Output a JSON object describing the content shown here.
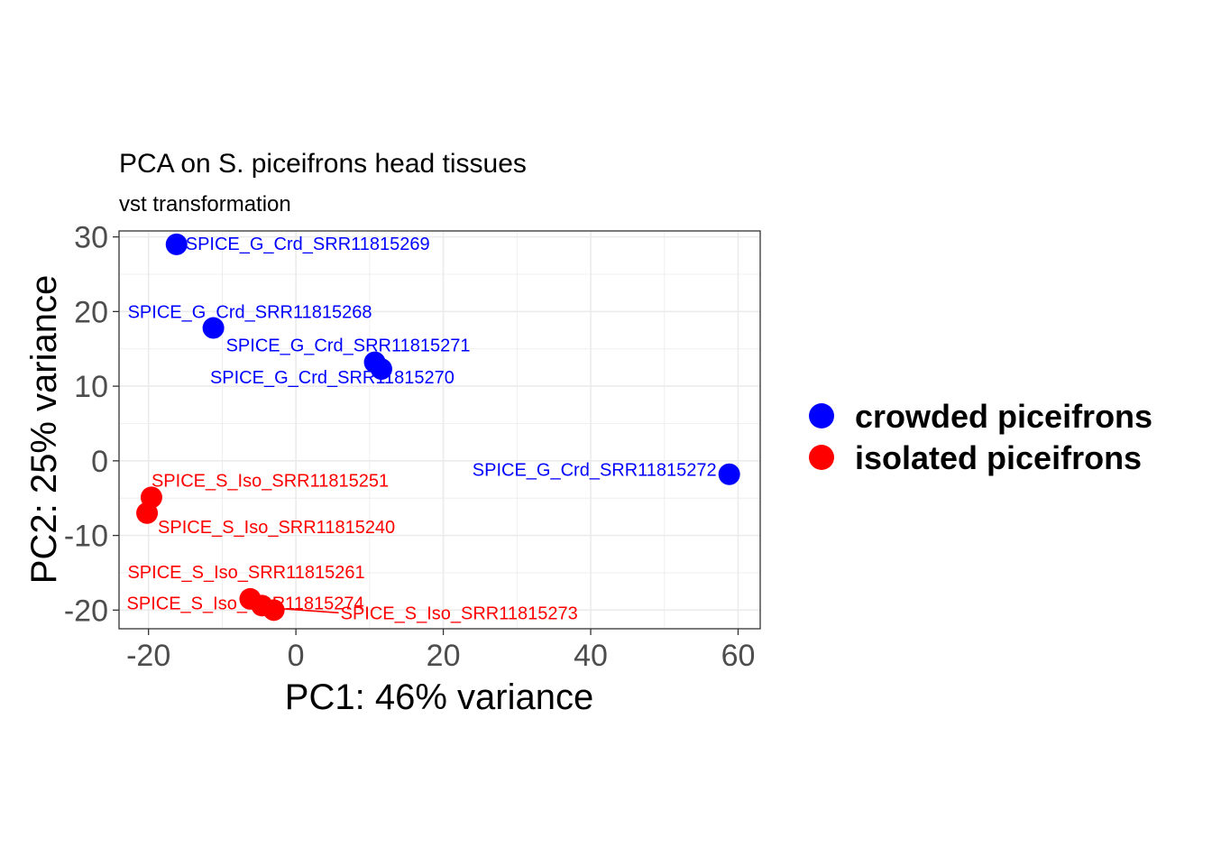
{
  "chart_data": {
    "type": "scatter",
    "title": "PCA on S. piceifrons head tissues",
    "subtitle": "vst transformation",
    "xlabel": "PC1: 46% variance",
    "ylabel": "PC2: 25% variance",
    "xlim": [
      -24,
      63
    ],
    "ylim": [
      -22.5,
      30.8
    ],
    "x_ticks": [
      -20,
      0,
      20,
      40,
      60
    ],
    "y_ticks": [
      -20,
      -10,
      0,
      10,
      20,
      30
    ],
    "grid": true,
    "legend_position": "right",
    "series": [
      {
        "name": "crowded piceifrons",
        "color": "#0000ff",
        "points": [
          {
            "x": -16.2,
            "y": 29.0,
            "label": "SPICE_G_Crd_SRR11815269"
          },
          {
            "x": -11.2,
            "y": 17.8,
            "label": "SPICE_G_Crd_SRR11815268"
          },
          {
            "x": 10.7,
            "y": 13.2,
            "label": "SPICE_G_Crd_SRR11815271"
          },
          {
            "x": 11.6,
            "y": 12.3,
            "label": "SPICE_G_Crd_SRR11815270"
          },
          {
            "x": 58.8,
            "y": -1.8,
            "label": "SPICE_G_Crd_SRR11815272"
          }
        ]
      },
      {
        "name": "isolated piceifrons",
        "color": "#ff0000",
        "points": [
          {
            "x": -19.6,
            "y": -4.9,
            "label": "SPICE_S_Iso_SRR11815251"
          },
          {
            "x": -20.2,
            "y": -7.0,
            "label": "SPICE_S_Iso_SRR11815240"
          },
          {
            "x": -6.2,
            "y": -18.5,
            "label": "SPICE_S_Iso_SRR11815261"
          },
          {
            "x": -4.6,
            "y": -19.4,
            "label": "SPICE_S_Iso_SRR11815274"
          },
          {
            "x": -3.0,
            "y": -20.0,
            "label": "SPICE_S_Iso_SRR11815273"
          }
        ]
      }
    ]
  }
}
